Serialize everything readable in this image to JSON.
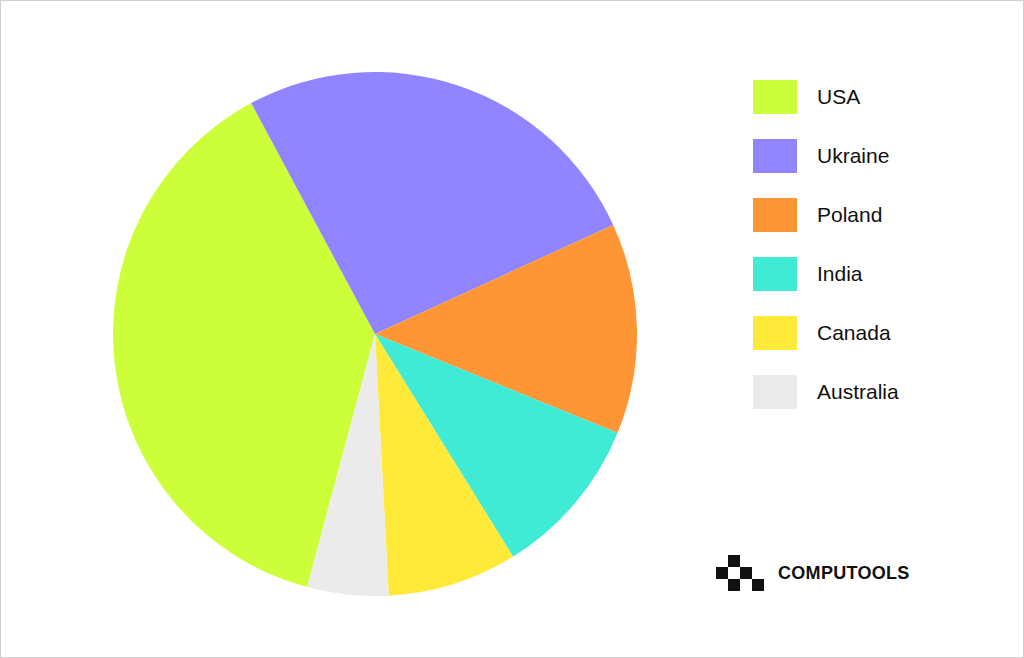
{
  "chart_data": {
    "type": "pie",
    "categories": [
      "USA",
      "Ukraine",
      "Poland",
      "India",
      "Canada",
      "Australia"
    ],
    "values": [
      38,
      26,
      13,
      10,
      8,
      5
    ],
    "colors": [
      "#ccff3a",
      "#9184ff",
      "#ff9636",
      "#40ebd6",
      "#ffea3a",
      "#ebebeb"
    ],
    "legend": "upper right"
  },
  "brand": "COMPUTOOLS"
}
